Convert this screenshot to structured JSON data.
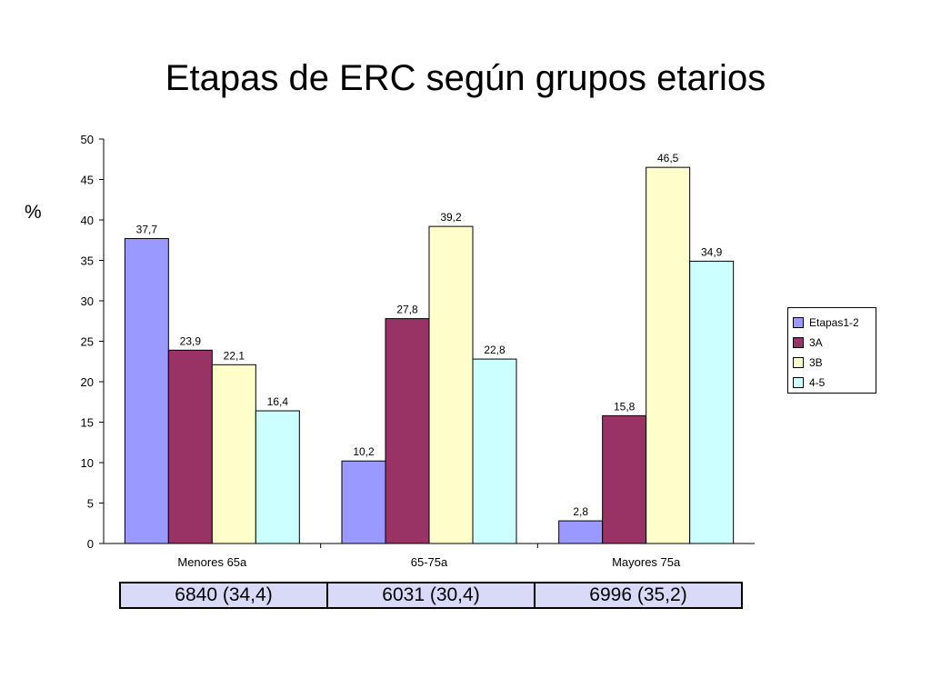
{
  "slide": {
    "title": "Etapas de ERC según grupos etarios",
    "y_unit": "%"
  },
  "chart_data": {
    "type": "bar",
    "categories": [
      "Menores 65a",
      "65-75a",
      "Mayores 75a"
    ],
    "series": [
      {
        "name": "Etapas1-2",
        "values": [
          37.7,
          10.2,
          2.8
        ],
        "labels": [
          "37,7",
          "10,2",
          "2,8"
        ],
        "color": "#9999ff"
      },
      {
        "name": "3A",
        "values": [
          23.9,
          27.8,
          15.8
        ],
        "labels": [
          "23,9",
          "27,8",
          "15,8"
        ],
        "color": "#993366"
      },
      {
        "name": "3B",
        "values": [
          22.1,
          39.2,
          46.5
        ],
        "labels": [
          "22,1",
          "39,2",
          "46,5"
        ],
        "color": "#ffffcc"
      },
      {
        "name": "4-5",
        "values": [
          16.4,
          22.8,
          34.9
        ],
        "labels": [
          "16,4",
          "22,8",
          "34,9"
        ],
        "color": "#ccffff"
      }
    ],
    "y_ticks": [
      "0",
      "5",
      "10",
      "15",
      "20",
      "25",
      "30",
      "35",
      "40",
      "45",
      "50"
    ],
    "ylim": [
      0,
      50
    ],
    "grid": false,
    "legend_position": "right"
  },
  "counts_row": [
    "6840 (34,4)",
    "6031 (30,4)",
    "6996 (35,2)"
  ]
}
